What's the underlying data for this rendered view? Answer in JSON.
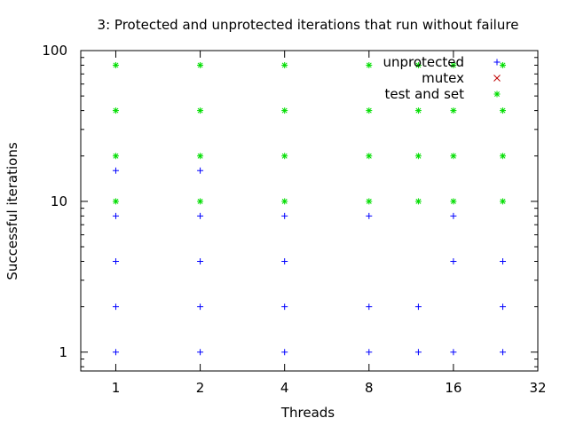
{
  "chart_data": {
    "type": "scatter",
    "title": "3: Protected and unprotected iterations that run without failure",
    "xlabel": "Threads",
    "ylabel": "Successful iterations",
    "xscale": "log2",
    "yscale": "log10",
    "xlim": [
      0.75,
      32
    ],
    "ylim": [
      0.75,
      100
    ],
    "xticks": [
      1,
      2,
      4,
      8,
      16,
      32
    ],
    "xtick_labels": [
      "1",
      "2",
      "4",
      "8",
      "16",
      "32"
    ],
    "yticks": [
      1,
      10,
      100
    ],
    "ytick_labels": [
      "1",
      "10",
      "100"
    ],
    "grid": false,
    "legend_position": "top-right",
    "series": [
      {
        "name": "unprotected",
        "marker": "plus",
        "color": "#0000ff",
        "points": [
          [
            1,
            1
          ],
          [
            1,
            2
          ],
          [
            1,
            4
          ],
          [
            1,
            8
          ],
          [
            1,
            16
          ],
          [
            2,
            1
          ],
          [
            2,
            2
          ],
          [
            2,
            4
          ],
          [
            2,
            8
          ],
          [
            2,
            16
          ],
          [
            4,
            1
          ],
          [
            4,
            2
          ],
          [
            4,
            4
          ],
          [
            4,
            8
          ],
          [
            8,
            1
          ],
          [
            8,
            2
          ],
          [
            8,
            8
          ],
          [
            12,
            1
          ],
          [
            12,
            2
          ],
          [
            16,
            1
          ],
          [
            16,
            4
          ],
          [
            16,
            8
          ],
          [
            24,
            1
          ],
          [
            24,
            2
          ],
          [
            24,
            4
          ]
        ]
      },
      {
        "name": "mutex",
        "marker": "x",
        "color": "#c00000",
        "points": []
      },
      {
        "name": "test and set",
        "marker": "star",
        "color": "#00dd00",
        "points": [
          [
            1,
            10
          ],
          [
            1,
            20
          ],
          [
            1,
            40
          ],
          [
            1,
            80
          ],
          [
            2,
            10
          ],
          [
            2,
            20
          ],
          [
            2,
            40
          ],
          [
            2,
            80
          ],
          [
            4,
            10
          ],
          [
            4,
            20
          ],
          [
            4,
            40
          ],
          [
            4,
            80
          ],
          [
            8,
            10
          ],
          [
            8,
            20
          ],
          [
            8,
            40
          ],
          [
            8,
            80
          ],
          [
            12,
            10
          ],
          [
            12,
            20
          ],
          [
            12,
            40
          ],
          [
            12,
            80
          ],
          [
            16,
            10
          ],
          [
            16,
            20
          ],
          [
            16,
            40
          ],
          [
            16,
            80
          ],
          [
            24,
            10
          ],
          [
            24,
            20
          ],
          [
            24,
            40
          ],
          [
            24,
            80
          ]
        ]
      }
    ]
  }
}
